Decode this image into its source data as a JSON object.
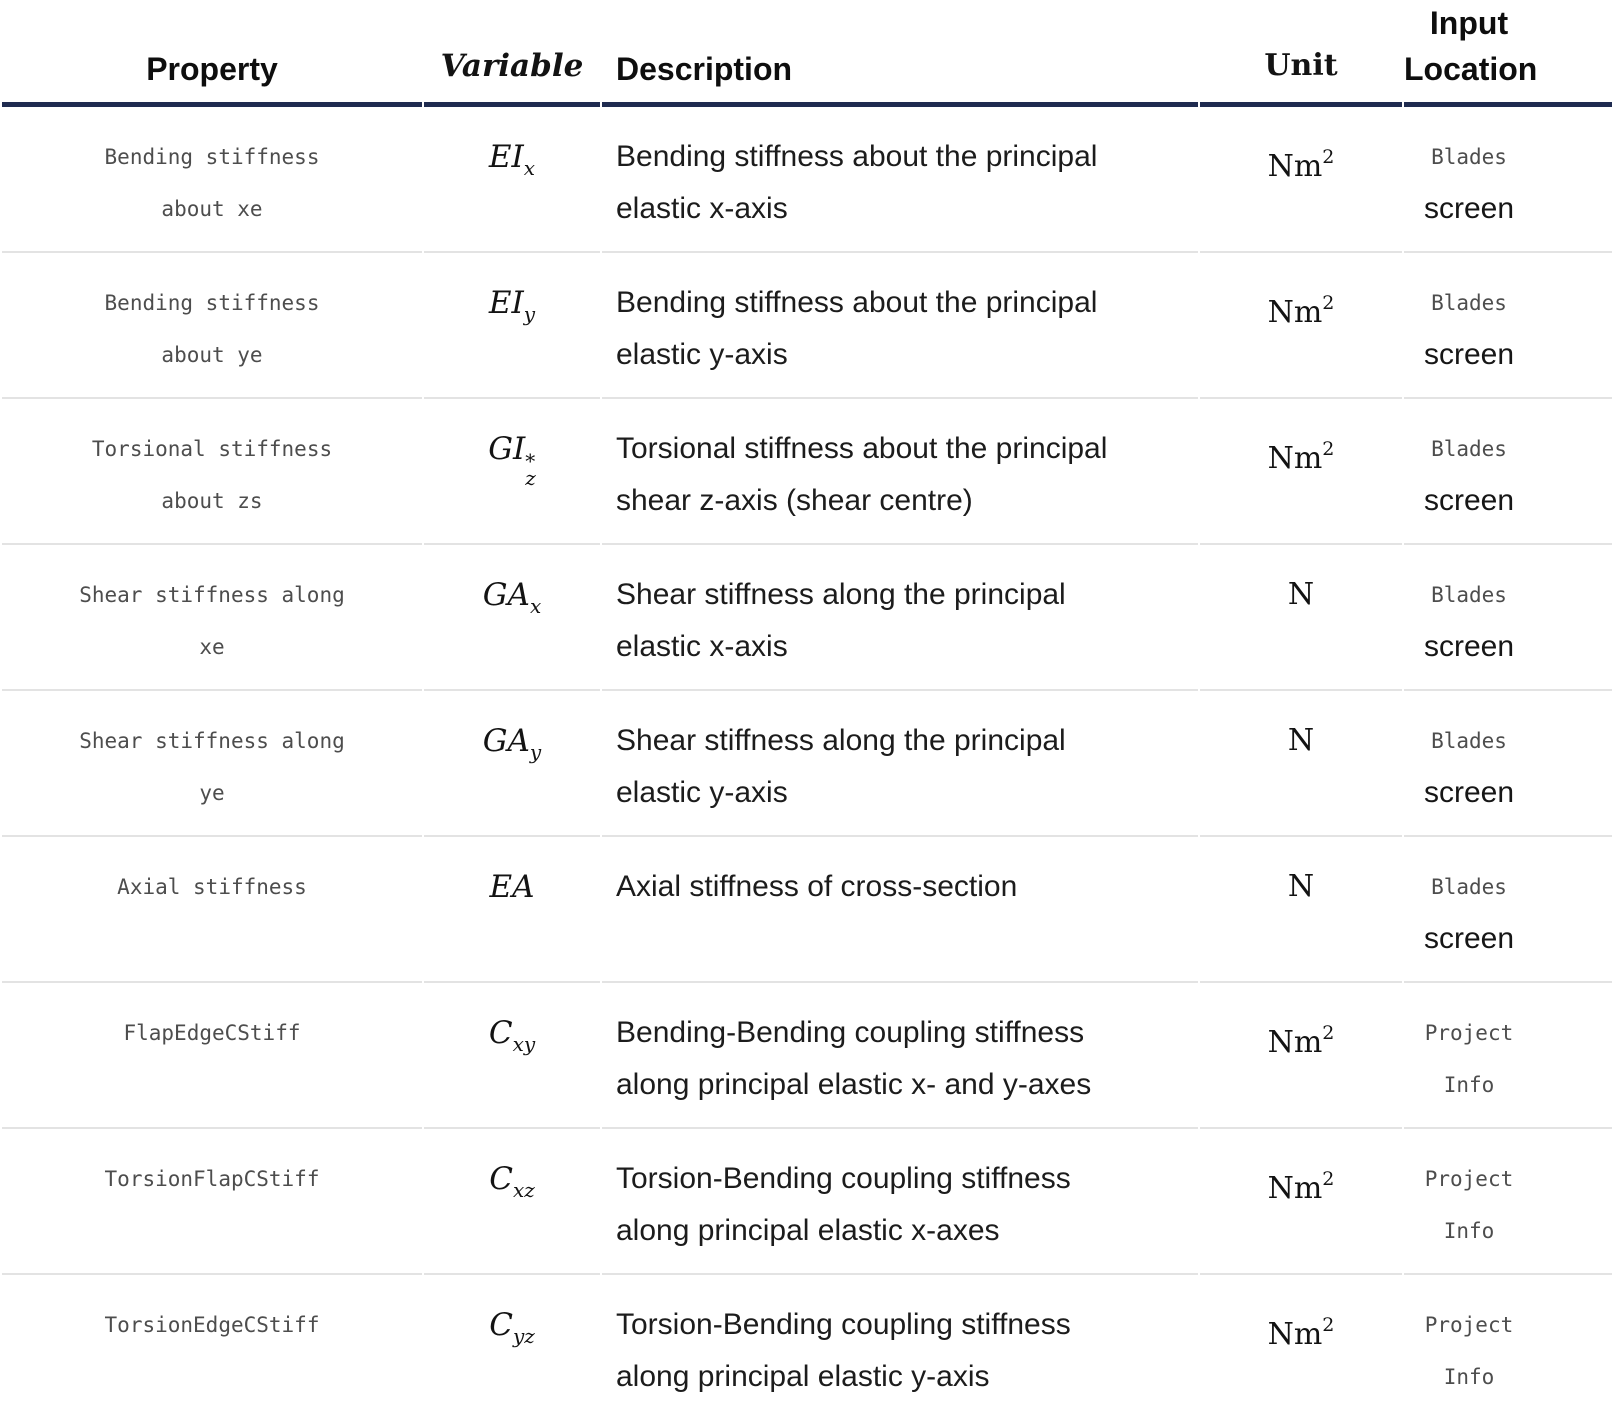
{
  "colors": {
    "header_rule": "#1f2b50",
    "row_rule": "#e3e3e3",
    "code_text": "#4d4d4d",
    "body_text": "#1c1c1c"
  },
  "table": {
    "columns": [
      {
        "label": "Property",
        "lines": [
          "Property"
        ]
      },
      {
        "label": "Variable",
        "lines": [
          "Variable"
        ]
      },
      {
        "label": "Description",
        "lines": [
          "Description"
        ]
      },
      {
        "label": "Unit",
        "lines": [
          "Unit"
        ]
      },
      {
        "label": "Input Location",
        "lines": [
          "Input",
          "Location"
        ]
      }
    ],
    "rows": [
      {
        "property": "Bending stiffness about xe",
        "property_lines": [
          "Bending stiffness",
          "about xe"
        ],
        "variable": {
          "base": "EI",
          "sub": "x",
          "sup": ""
        },
        "description": "Bending stiffness about the principal elastic x-axis",
        "description_lines": [
          "Bending stiffness about the principal",
          "elastic x-axis"
        ],
        "unit": {
          "base": "Nm",
          "sup": "2"
        },
        "location": [
          {
            "text": "Blades",
            "code": true
          },
          {
            "text": "screen",
            "code": false
          }
        ]
      },
      {
        "property": "Bending stiffness about ye",
        "property_lines": [
          "Bending stiffness",
          "about ye"
        ],
        "variable": {
          "base": "EI",
          "sub": "y",
          "sup": ""
        },
        "description": "Bending stiffness about the principal elastic y-axis",
        "description_lines": [
          "Bending stiffness about the principal",
          "elastic y-axis"
        ],
        "unit": {
          "base": "Nm",
          "sup": "2"
        },
        "location": [
          {
            "text": "Blades",
            "code": true
          },
          {
            "text": "screen",
            "code": false
          }
        ]
      },
      {
        "property": "Torsional stiffness about zs",
        "property_lines": [
          "Torsional stiffness",
          "about zs"
        ],
        "variable": {
          "base": "GI",
          "sub": "z",
          "sup": "*"
        },
        "description": "Torsional stiffness about the principal shear z-axis (shear centre)",
        "description_lines": [
          "Torsional stiffness about the principal",
          "shear z-axis (shear centre)"
        ],
        "unit": {
          "base": "Nm",
          "sup": "2"
        },
        "location": [
          {
            "text": "Blades",
            "code": true
          },
          {
            "text": "screen",
            "code": false
          }
        ]
      },
      {
        "property": "Shear stiffness along xe",
        "property_lines": [
          "Shear stiffness along",
          "xe"
        ],
        "variable": {
          "base": "GA",
          "sub": "x",
          "sup": ""
        },
        "description": "Shear stiffness along the principal elastic x-axis",
        "description_lines": [
          "Shear stiffness along the principal",
          "elastic x-axis"
        ],
        "unit": {
          "base": "N",
          "sup": ""
        },
        "location": [
          {
            "text": "Blades",
            "code": true
          },
          {
            "text": "screen",
            "code": false
          }
        ]
      },
      {
        "property": "Shear stiffness along ye",
        "property_lines": [
          "Shear stiffness along",
          "ye"
        ],
        "variable": {
          "base": "GA",
          "sub": "y",
          "sup": ""
        },
        "description": "Shear stiffness along the principal elastic y-axis",
        "description_lines": [
          "Shear stiffness along the principal",
          "elastic y-axis"
        ],
        "unit": {
          "base": "N",
          "sup": ""
        },
        "location": [
          {
            "text": "Blades",
            "code": true
          },
          {
            "text": "screen",
            "code": false
          }
        ]
      },
      {
        "property": "Axial stiffness",
        "property_lines": [
          "Axial stiffness"
        ],
        "variable": {
          "base": "EA",
          "sub": "",
          "sup": ""
        },
        "description": "Axial stiffness of cross-section",
        "description_lines": [
          "Axial stiffness of cross-section"
        ],
        "unit": {
          "base": "N",
          "sup": ""
        },
        "location": [
          {
            "text": "Blades",
            "code": true
          },
          {
            "text": "screen",
            "code": false
          }
        ]
      },
      {
        "property": "FlapEdgeCStiff",
        "property_lines": [
          "FlapEdgeCStiff"
        ],
        "variable": {
          "base": "C",
          "sub": "xy",
          "sup": ""
        },
        "description": "Bending-Bending coupling stiffness along principal elastic x- and y-axes",
        "description_lines": [
          "Bending-Bending coupling stiffness",
          "along principal elastic x- and y-axes"
        ],
        "unit": {
          "base": "Nm",
          "sup": "2"
        },
        "location": [
          {
            "text": "Project",
            "code": true
          },
          {
            "text": "Info",
            "code": true
          }
        ]
      },
      {
        "property": "TorsionFlapCStiff",
        "property_lines": [
          "TorsionFlapCStiff"
        ],
        "variable": {
          "base": "C",
          "sub": "xz",
          "sup": ""
        },
        "description": "Torsion-Bending coupling stiffness along principal elastic x-axes",
        "description_lines": [
          "Torsion-Bending coupling stiffness",
          "along principal elastic x-axes"
        ],
        "unit": {
          "base": "Nm",
          "sup": "2"
        },
        "location": [
          {
            "text": "Project",
            "code": true
          },
          {
            "text": "Info",
            "code": true
          }
        ]
      },
      {
        "property": "TorsionEdgeCStiff",
        "property_lines": [
          "TorsionEdgeCStiff"
        ],
        "variable": {
          "base": "C",
          "sub": "yz",
          "sup": ""
        },
        "description": "Torsion-Bending coupling stiffness along principal elastic y-axis",
        "description_lines": [
          "Torsion-Bending coupling stiffness",
          "along principal elastic y-axis"
        ],
        "unit": {
          "base": "Nm",
          "sup": "2"
        },
        "location": [
          {
            "text": "Project",
            "code": true
          },
          {
            "text": "Info",
            "code": true
          }
        ]
      }
    ]
  }
}
